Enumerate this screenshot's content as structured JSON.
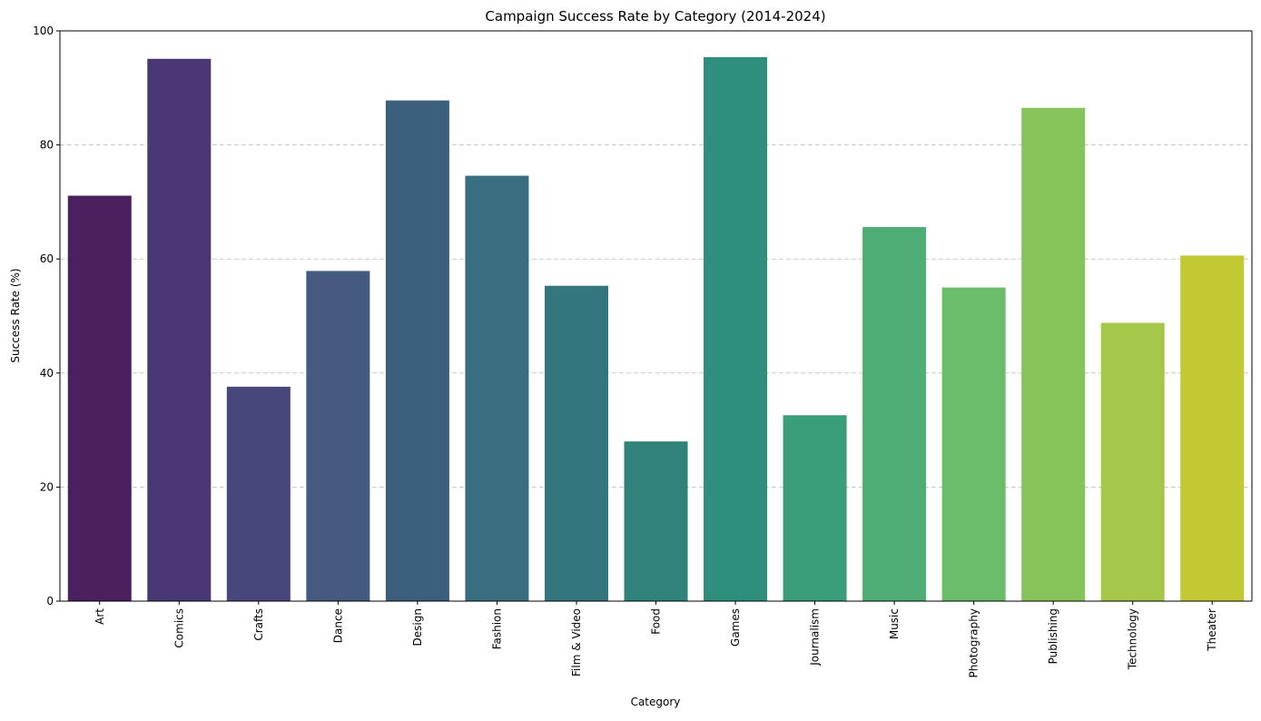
{
  "chart_data": {
    "type": "bar",
    "title": "Campaign Success Rate by Category (2014-2024)",
    "xlabel": "Category",
    "ylabel": "Success Rate (%)",
    "ylim": [
      0,
      100
    ],
    "yticks": [
      "0",
      "20",
      "40",
      "60",
      "80",
      "100"
    ],
    "ytick_values": [
      0,
      20,
      40,
      60,
      80,
      100
    ],
    "grid": "y-dashed",
    "x_tick_rotation": "vertical",
    "categories": [
      "Art",
      "Comics",
      "Crafts",
      "Dance",
      "Design",
      "Fashion",
      "Film & Video",
      "Food",
      "Games",
      "Journalism",
      "Music",
      "Photography",
      "Publishing",
      "Technology",
      "Theater"
    ],
    "values": [
      71.1,
      95.1,
      37.6,
      57.9,
      87.8,
      74.6,
      55.3,
      28.0,
      95.4,
      32.6,
      65.6,
      55.0,
      86.5,
      48.8,
      60.6
    ],
    "colors": [
      "#4a205e",
      "#4a3874",
      "#48477b",
      "#445a7f",
      "#3c5f7e",
      "#396d80",
      "#33767d",
      "#2f837a",
      "#2f8f7d",
      "#3b9e7a",
      "#50ad76",
      "#6cbd69",
      "#87c35b",
      "#a6c84a",
      "#c2c933"
    ]
  }
}
